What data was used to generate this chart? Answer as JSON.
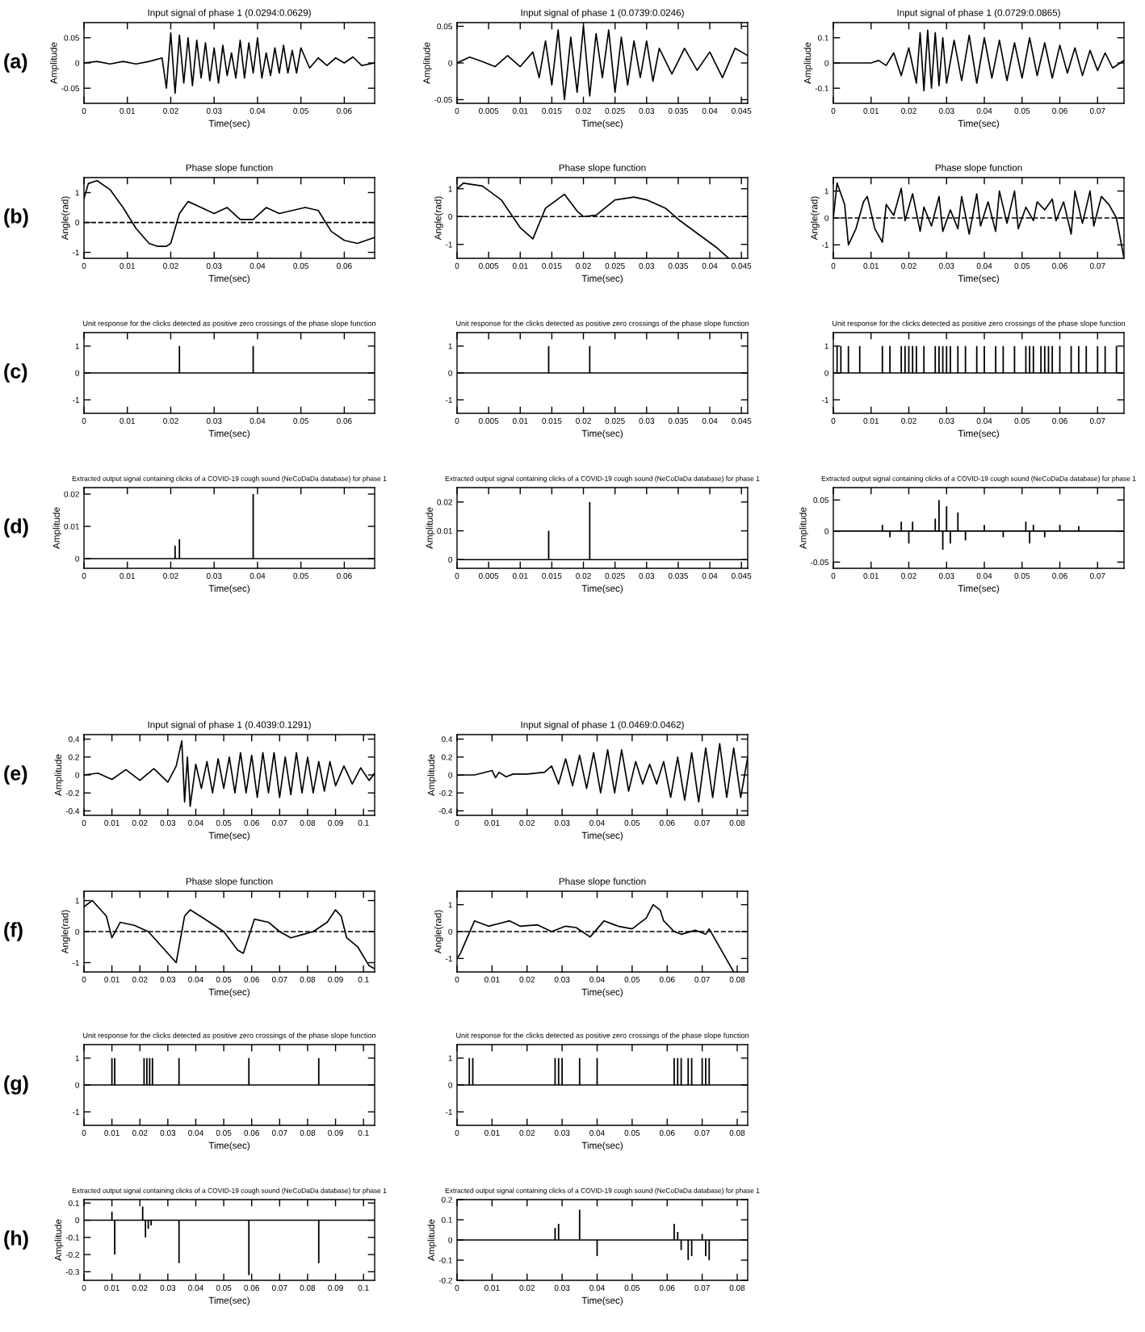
{
  "chart_data": [
    {
      "type": "line",
      "title": "Input signal of phase 1 (0.0294:0.0629)",
      "xlabel": "Time(sec)",
      "ylabel": "Amplitude",
      "annotations": [
        "(a)"
      ],
      "xlim": [
        0,
        0.067
      ],
      "xticks": [
        0,
        0.01,
        0.02,
        0.03,
        0.04,
        0.05,
        0.06
      ],
      "ylim": [
        -0.08,
        0.08
      ],
      "yticks": [
        -0.05,
        0,
        0.05
      ],
      "series": [
        {
          "color": "#000000",
          "x": [
            0,
            0.003,
            0.006,
            0.009,
            0.012,
            0.015,
            0.018,
            0.019,
            0.02,
            0.021,
            0.022,
            0.023,
            0.024,
            0.025,
            0.026,
            0.027,
            0.028,
            0.029,
            0.03,
            0.031,
            0.032,
            0.033,
            0.034,
            0.035,
            0.036,
            0.037,
            0.038,
            0.039,
            0.04,
            0.041,
            0.042,
            0.043,
            0.044,
            0.045,
            0.046,
            0.047,
            0.048,
            0.049,
            0.05,
            0.052,
            0.054,
            0.056,
            0.058,
            0.06,
            0.062,
            0.064,
            0.067
          ],
          "values": [
            0,
            0.003,
            -0.002,
            0.003,
            -0.002,
            0.003,
            0.01,
            -0.05,
            0.06,
            -0.06,
            0.055,
            -0.04,
            0.05,
            -0.045,
            0.045,
            -0.03,
            0.04,
            -0.035,
            0.03,
            -0.04,
            0.035,
            -0.025,
            0.02,
            -0.03,
            0.045,
            -0.03,
            0.04,
            -0.02,
            0.05,
            -0.03,
            0.02,
            -0.025,
            0.03,
            -0.02,
            0.035,
            -0.02,
            0.025,
            -0.02,
            0.03,
            -0.01,
            0.01,
            -0.005,
            0.01,
            0,
            0.012,
            -0.005,
            0
          ]
        }
      ]
    },
    {
      "type": "line",
      "title": "Input signal of phase 1 (0.0739:0.0246)",
      "xlabel": "Time(sec)",
      "ylabel": "Amplitude",
      "xlim": [
        0,
        0.046
      ],
      "xticks": [
        0,
        0.005,
        0.01,
        0.015,
        0.02,
        0.025,
        0.03,
        0.035,
        0.04,
        0.045
      ],
      "ylim": [
        -0.055,
        0.055
      ],
      "yticks": [
        -0.05,
        0,
        0.05
      ],
      "series": [
        {
          "color": "#000000",
          "x": [
            0,
            0.002,
            0.004,
            0.006,
            0.008,
            0.01,
            0.012,
            0.013,
            0.014,
            0.015,
            0.016,
            0.017,
            0.018,
            0.019,
            0.02,
            0.021,
            0.022,
            0.023,
            0.024,
            0.025,
            0.026,
            0.027,
            0.028,
            0.029,
            0.03,
            0.031,
            0.032,
            0.034,
            0.036,
            0.038,
            0.04,
            0.042,
            0.044,
            0.046
          ],
          "values": [
            0,
            0.008,
            0.002,
            -0.005,
            0.01,
            -0.005,
            0.015,
            -0.02,
            0.03,
            -0.03,
            0.045,
            -0.05,
            0.035,
            -0.04,
            0.05,
            -0.045,
            0.04,
            -0.02,
            0.045,
            -0.04,
            0.035,
            -0.03,
            0.03,
            -0.02,
            0.03,
            -0.025,
            0.02,
            -0.015,
            0.02,
            -0.01,
            0.015,
            -0.02,
            0.02,
            0.01
          ]
        }
      ]
    },
    {
      "type": "line",
      "title": "Input signal of phase 1 (0.0729:0.0865)",
      "xlabel": "Time(sec)",
      "ylabel": "Amplitude",
      "xlim": [
        0,
        0.077
      ],
      "xticks": [
        0,
        0.01,
        0.02,
        0.03,
        0.04,
        0.05,
        0.06,
        0.07
      ],
      "ylim": [
        -0.16,
        0.16
      ],
      "yticks": [
        -0.1,
        0,
        0.1
      ],
      "series": [
        {
          "color": "#000000",
          "x": [
            0,
            0.005,
            0.01,
            0.012,
            0.014,
            0.016,
            0.018,
            0.02,
            0.022,
            0.023,
            0.024,
            0.025,
            0.026,
            0.027,
            0.028,
            0.029,
            0.03,
            0.032,
            0.034,
            0.036,
            0.038,
            0.04,
            0.042,
            0.044,
            0.046,
            0.048,
            0.05,
            0.052,
            0.054,
            0.056,
            0.058,
            0.06,
            0.062,
            0.064,
            0.066,
            0.068,
            0.07,
            0.072,
            0.074,
            0.077
          ],
          "values": [
            0,
            0,
            0,
            0.01,
            -0.01,
            0.04,
            -0.05,
            0.06,
            -0.08,
            0.12,
            -0.11,
            0.13,
            -0.1,
            0.12,
            -0.09,
            0.1,
            -0.08,
            0.09,
            -0.07,
            0.11,
            -0.08,
            0.1,
            -0.06,
            0.09,
            -0.07,
            0.08,
            -0.06,
            0.1,
            -0.05,
            0.08,
            -0.06,
            0.07,
            -0.04,
            0.06,
            -0.05,
            0.05,
            -0.03,
            0.04,
            -0.02,
            0.01
          ]
        }
      ]
    },
    {
      "type": "line",
      "title": "Phase slope function",
      "xlabel": "Time(sec)",
      "ylabel": "Angle(rad)",
      "annotations": [
        "(b)"
      ],
      "xlim": [
        0,
        0.067
      ],
      "xticks": [
        0,
        0.01,
        0.02,
        0.03,
        0.04,
        0.05,
        0.06
      ],
      "ylim": [
        -1.2,
        1.5
      ],
      "yticks": [
        -1,
        0,
        1
      ],
      "ref_lines": [
        {
          "axis": "y",
          "value": 0,
          "color": "#000000",
          "line_style": "dashed"
        }
      ],
      "series": [
        {
          "color": "#000000",
          "x": [
            0,
            0.001,
            0.003,
            0.006,
            0.009,
            0.012,
            0.015,
            0.017,
            0.019,
            0.02,
            0.022,
            0.024,
            0.027,
            0.03,
            0.033,
            0.036,
            0.039,
            0.042,
            0.045,
            0.048,
            0.051,
            0.054,
            0.057,
            0.06,
            0.063,
            0.067
          ],
          "values": [
            0.8,
            1.3,
            1.4,
            1.1,
            0.5,
            -0.2,
            -0.7,
            -0.8,
            -0.8,
            -0.7,
            0.3,
            0.7,
            0.5,
            0.3,
            0.5,
            0.1,
            0.1,
            0.5,
            0.3,
            0.4,
            0.5,
            0.4,
            -0.3,
            -0.6,
            -0.7,
            -0.5
          ]
        }
      ]
    },
    {
      "type": "line",
      "title": "Phase slope function",
      "xlabel": "Time(sec)",
      "ylabel": "Angle(rad)",
      "xlim": [
        0,
        0.046
      ],
      "xticks": [
        0,
        0.005,
        0.01,
        0.015,
        0.02,
        0.025,
        0.03,
        0.035,
        0.04,
        0.045
      ],
      "ylim": [
        -1.5,
        1.4
      ],
      "yticks": [
        -1,
        0,
        1
      ],
      "ref_lines": [
        {
          "axis": "y",
          "value": 0,
          "color": "#000000",
          "line_style": "dashed"
        }
      ],
      "series": [
        {
          "color": "#000000",
          "x": [
            0,
            0.001,
            0.004,
            0.007,
            0.01,
            0.012,
            0.014,
            0.017,
            0.019,
            0.02,
            0.022,
            0.025,
            0.028,
            0.03,
            0.033,
            0.035,
            0.038,
            0.041,
            0.043
          ],
          "values": [
            1,
            1.2,
            1.1,
            0.6,
            -0.4,
            -0.8,
            0.3,
            0.8,
            0.2,
            0,
            0.05,
            0.6,
            0.7,
            0.6,
            0.3,
            -0.1,
            -0.6,
            -1.1,
            -1.5
          ]
        }
      ]
    },
    {
      "type": "line",
      "title": "Phase slope function",
      "xlabel": "Time(sec)",
      "ylabel": "Angle(rad)",
      "xlim": [
        0,
        0.077
      ],
      "xticks": [
        0,
        0.01,
        0.02,
        0.03,
        0.04,
        0.05,
        0.06,
        0.07
      ],
      "ylim": [
        -1.5,
        1.5
      ],
      "yticks": [
        -1,
        0,
        1
      ],
      "ref_lines": [
        {
          "axis": "y",
          "value": 0,
          "color": "#000000",
          "line_style": "dashed"
        }
      ],
      "series": [
        {
          "color": "#000000",
          "x": [
            0,
            0.001,
            0.003,
            0.004,
            0.006,
            0.008,
            0.009,
            0.011,
            0.013,
            0.014,
            0.016,
            0.018,
            0.019,
            0.021,
            0.023,
            0.024,
            0.026,
            0.028,
            0.029,
            0.031,
            0.033,
            0.034,
            0.036,
            0.038,
            0.039,
            0.041,
            0.043,
            0.044,
            0.046,
            0.048,
            0.049,
            0.051,
            0.053,
            0.054,
            0.056,
            0.058,
            0.059,
            0.061,
            0.063,
            0.064,
            0.066,
            0.068,
            0.069,
            0.071,
            0.073,
            0.075,
            0.077
          ],
          "values": [
            0,
            1.3,
            0.5,
            -1,
            -0.4,
            0.6,
            0.8,
            -0.4,
            -0.9,
            0.5,
            0.1,
            1.1,
            -0.1,
            0.9,
            -0.5,
            0.4,
            -0.3,
            0.8,
            -0.5,
            0.3,
            -0.4,
            0.8,
            -0.6,
            0.9,
            -0.3,
            0.6,
            -0.5,
            1,
            -0.2,
            1,
            -0.4,
            0.4,
            -0.1,
            0.6,
            0.3,
            0.7,
            -0.1,
            0.6,
            -0.6,
            1,
            -0.2,
            1,
            -0.3,
            0.8,
            0.5,
            0,
            -1.5
          ]
        }
      ]
    },
    {
      "type": "bar",
      "title": "Unit response for the clicks detected as positive zero crossings of the phase slope function",
      "xlabel": "Time(sec)",
      "annotations": [
        "(c)"
      ],
      "xlim": [
        0,
        0.067
      ],
      "xticks": [
        0,
        0.01,
        0.02,
        0.03,
        0.04,
        0.05,
        0.06
      ],
      "ylim": [
        -1.5,
        1.5
      ],
      "yticks": [
        -1,
        0,
        1
      ],
      "ref_lines": [
        {
          "axis": "y",
          "value": 0,
          "color": "#000000",
          "line_style": "solid"
        }
      ],
      "series": [
        {
          "color": "#000000",
          "x": [
            0.022,
            0.039
          ],
          "values": [
            1,
            1
          ]
        }
      ]
    },
    {
      "type": "bar",
      "title": "Unit response for the clicks detected as positive zero crossings of the phase slope function",
      "xlabel": "Time(sec)",
      "xlim": [
        0,
        0.046
      ],
      "xticks": [
        0,
        0.005,
        0.01,
        0.015,
        0.02,
        0.025,
        0.03,
        0.035,
        0.04,
        0.045
      ],
      "ylim": [
        -1.5,
        1.5
      ],
      "yticks": [
        -1,
        0,
        1
      ],
      "ref_lines": [
        {
          "axis": "y",
          "value": 0,
          "color": "#000000",
          "line_style": "solid"
        }
      ],
      "series": [
        {
          "color": "#000000",
          "x": [
            0.0145,
            0.021
          ],
          "values": [
            1,
            1
          ]
        }
      ]
    },
    {
      "type": "bar",
      "title": "Unit response for the clicks detected as positive zero crossings of the phase slope function",
      "xlabel": "Time(sec)",
      "xlim": [
        0,
        0.077
      ],
      "xticks": [
        0,
        0.01,
        0.02,
        0.03,
        0.04,
        0.05,
        0.06,
        0.07
      ],
      "ylim": [
        -1.5,
        1.5
      ],
      "yticks": [
        -1,
        0,
        1
      ],
      "ref_lines": [
        {
          "axis": "y",
          "value": 0,
          "color": "#000000",
          "line_style": "solid"
        }
      ],
      "series": [
        {
          "color": "#000000",
          "x": [
            0.001,
            0.002,
            0.004,
            0.007,
            0.013,
            0.015,
            0.018,
            0.019,
            0.02,
            0.021,
            0.022,
            0.024,
            0.027,
            0.028,
            0.029,
            0.03,
            0.031,
            0.033,
            0.035,
            0.038,
            0.04,
            0.043,
            0.045,
            0.048,
            0.051,
            0.052,
            0.053,
            0.055,
            0.056,
            0.057,
            0.058,
            0.06,
            0.063,
            0.065,
            0.067,
            0.07,
            0.072,
            0.075
          ],
          "values": [
            1,
            1,
            1,
            1,
            1,
            1,
            1,
            1,
            1,
            1,
            1,
            1,
            1,
            1,
            1,
            1,
            1,
            1,
            1,
            1,
            1,
            1,
            1,
            1,
            1,
            1,
            1,
            1,
            1,
            1,
            1,
            1,
            1,
            1,
            1,
            1,
            1,
            1
          ]
        }
      ]
    },
    {
      "type": "bar",
      "title": "Extracted output signal containing clicks of a COVID-19 cough sound (NeCoDaDa database) for phase 1",
      "xlabel": "Time(sec)",
      "ylabel": "Amplitude",
      "annotations": [
        "(d)"
      ],
      "xlim": [
        0,
        0.067
      ],
      "xticks": [
        0,
        0.01,
        0.02,
        0.03,
        0.04,
        0.05,
        0.06
      ],
      "ylim": [
        -0.003,
        0.022
      ],
      "yticks": [
        0,
        0.01,
        0.02
      ],
      "ref_lines": [
        {
          "axis": "y",
          "value": 0,
          "color": "#000000",
          "line_style": "solid"
        }
      ],
      "series": [
        {
          "color": "#000000",
          "x": [
            0.021,
            0.022,
            0.039
          ],
          "values": [
            0.004,
            0.006,
            0.02
          ]
        }
      ]
    },
    {
      "type": "bar",
      "title": "Extracted output signal containing clicks of a COVID-19 cough sound (NeCoDaDa database) for phase 1",
      "xlabel": "Time(sec)",
      "ylabel": "Amplitude",
      "xlim": [
        0,
        0.046
      ],
      "xticks": [
        0,
        0.005,
        0.01,
        0.015,
        0.02,
        0.025,
        0.03,
        0.035,
        0.04,
        0.045
      ],
      "ylim": [
        -0.003,
        0.025
      ],
      "yticks": [
        0,
        0.01,
        0.02
      ],
      "ref_lines": [
        {
          "axis": "y",
          "value": 0,
          "color": "#000000",
          "line_style": "solid"
        }
      ],
      "series": [
        {
          "color": "#000000",
          "x": [
            0.0145,
            0.021
          ],
          "values": [
            0.01,
            0.02
          ]
        }
      ]
    },
    {
      "type": "bar",
      "title": "Extracted output signal containing clicks of a COVID-19 cough sound (NeCoDaDa database) for phase 1",
      "xlabel": "Time(sec)",
      "ylabel": "Amplitude",
      "xlim": [
        0,
        0.077
      ],
      "xticks": [
        0,
        0.01,
        0.02,
        0.03,
        0.04,
        0.05,
        0.06,
        0.07
      ],
      "ylim": [
        -0.06,
        0.07
      ],
      "yticks": [
        -0.05,
        0,
        0.05
      ],
      "ref_lines": [
        {
          "axis": "y",
          "value": 0,
          "color": "#000000",
          "line_style": "solid"
        }
      ],
      "series": [
        {
          "color": "#000000",
          "x": [
            0.013,
            0.015,
            0.018,
            0.02,
            0.021,
            0.027,
            0.028,
            0.029,
            0.03,
            0.031,
            0.033,
            0.035,
            0.04,
            0.045,
            0.051,
            0.052,
            0.053,
            0.056,
            0.06,
            0.065
          ],
          "values": [
            0.01,
            -0.01,
            0.015,
            -0.02,
            0.015,
            0.02,
            0.05,
            -0.03,
            0.04,
            -0.02,
            0.03,
            -0.015,
            0.01,
            -0.01,
            0.015,
            -0.02,
            0.01,
            -0.01,
            0.01,
            0.008
          ]
        }
      ]
    },
    {
      "type": "line",
      "title": "Input signal of phase 1 (0.4039:0.1291)",
      "xlabel": "Time(sec)",
      "ylabel": "Amplitude",
      "annotations": [
        "(e)"
      ],
      "xlim": [
        0,
        0.104
      ],
      "xticks": [
        0,
        0.01,
        0.02,
        0.03,
        0.04,
        0.05,
        0.06,
        0.07,
        0.08,
        0.09,
        0.1
      ],
      "ylim": [
        -0.45,
        0.45
      ],
      "yticks": [
        -0.4,
        -0.2,
        0,
        0.2,
        0.4
      ],
      "series": [
        {
          "color": "#000000",
          "x": [
            0,
            0.005,
            0.01,
            0.015,
            0.02,
            0.025,
            0.03,
            0.033,
            0.035,
            0.036,
            0.037,
            0.038,
            0.04,
            0.042,
            0.044,
            0.046,
            0.048,
            0.05,
            0.052,
            0.054,
            0.056,
            0.058,
            0.06,
            0.062,
            0.064,
            0.066,
            0.068,
            0.07,
            0.072,
            0.074,
            0.076,
            0.078,
            0.08,
            0.082,
            0.084,
            0.086,
            0.088,
            0.09,
            0.093,
            0.096,
            0.099,
            0.102,
            0.104
          ],
          "values": [
            0,
            0.02,
            -0.05,
            0.06,
            -0.06,
            0.07,
            -0.08,
            0.1,
            0.38,
            -0.3,
            0.2,
            -0.35,
            0.12,
            -0.15,
            0.15,
            -0.2,
            0.18,
            -0.15,
            0.2,
            -0.2,
            0.25,
            -0.2,
            0.22,
            -0.25,
            0.25,
            -0.2,
            0.25,
            -0.25,
            0.2,
            -0.22,
            0.25,
            -0.2,
            0.2,
            -0.2,
            0.15,
            -0.18,
            0.15,
            -0.12,
            0.1,
            -0.1,
            0.08,
            -0.06,
            0.02
          ]
        }
      ]
    },
    {
      "type": "line",
      "title": "Input signal of phase 1 (0.0469:0.0462)",
      "xlabel": "Time(sec)",
      "ylabel": "Amplitude",
      "xlim": [
        0,
        0.083
      ],
      "xticks": [
        0,
        0.01,
        0.02,
        0.03,
        0.04,
        0.05,
        0.06,
        0.07,
        0.08
      ],
      "ylim": [
        -0.45,
        0.45
      ],
      "yticks": [
        -0.4,
        -0.2,
        0,
        0.2,
        0.4
      ],
      "series": [
        {
          "color": "#000000",
          "x": [
            0,
            0.005,
            0.01,
            0.011,
            0.012,
            0.014,
            0.016,
            0.02,
            0.025,
            0.027,
            0.029,
            0.031,
            0.033,
            0.035,
            0.037,
            0.039,
            0.041,
            0.043,
            0.045,
            0.047,
            0.049,
            0.051,
            0.053,
            0.055,
            0.057,
            0.059,
            0.061,
            0.063,
            0.065,
            0.067,
            0.069,
            0.071,
            0.073,
            0.075,
            0.077,
            0.079,
            0.081,
            0.083
          ],
          "values": [
            0,
            0,
            0.05,
            -0.03,
            0.03,
            -0.02,
            0.01,
            0.01,
            0.03,
            0.1,
            -0.1,
            0.18,
            -0.12,
            0.22,
            -0.15,
            0.25,
            -0.2,
            0.28,
            -0.2,
            0.28,
            -0.18,
            0.15,
            -0.1,
            0.12,
            -0.1,
            0.15,
            -0.25,
            0.2,
            -0.28,
            0.25,
            -0.3,
            0.3,
            -0.25,
            0.35,
            -0.25,
            0.3,
            -0.25,
            0.2
          ]
        }
      ]
    },
    {
      "type": "line",
      "title": "Phase slope function",
      "xlabel": "Time(sec)",
      "ylabel": "Angle(rad)",
      "annotations": [
        "(f)"
      ],
      "xlim": [
        0,
        0.104
      ],
      "xticks": [
        0,
        0.01,
        0.02,
        0.03,
        0.04,
        0.05,
        0.06,
        0.07,
        0.08,
        0.09,
        0.1
      ],
      "ylim": [
        -1.3,
        1.3
      ],
      "yticks": [
        -1,
        0,
        1
      ],
      "ref_lines": [
        {
          "axis": "y",
          "value": 0,
          "color": "#000000",
          "line_style": "dashed"
        }
      ],
      "series": [
        {
          "color": "#000000",
          "x": [
            0,
            0.003,
            0.008,
            0.01,
            0.013,
            0.018,
            0.023,
            0.028,
            0.033,
            0.036,
            0.038,
            0.045,
            0.05,
            0.055,
            0.057,
            0.061,
            0.066,
            0.07,
            0.074,
            0.078,
            0.082,
            0.087,
            0.09,
            0.092,
            0.094,
            0.098,
            0.102,
            0.104
          ],
          "values": [
            0.8,
            1.0,
            0.5,
            -0.2,
            0.3,
            0.2,
            0,
            -0.5,
            -1,
            0.5,
            0.7,
            0.3,
            0,
            -0.6,
            -0.7,
            0.4,
            0.3,
            0,
            -0.2,
            -0.1,
            0,
            0.3,
            0.7,
            0.5,
            -0.2,
            -0.5,
            -1.1,
            -1.2
          ]
        }
      ]
    },
    {
      "type": "line",
      "title": "Phase slope function",
      "xlabel": "Time(sec)",
      "ylabel": "Angle(rad)",
      "xlim": [
        0,
        0.083
      ],
      "xticks": [
        0,
        0.01,
        0.02,
        0.03,
        0.04,
        0.05,
        0.06,
        0.07,
        0.08
      ],
      "ylim": [
        -1.5,
        1.5
      ],
      "yticks": [
        -1,
        0,
        1
      ],
      "ref_lines": [
        {
          "axis": "y",
          "value": 0,
          "color": "#000000",
          "line_style": "dashed"
        }
      ],
      "series": [
        {
          "color": "#000000",
          "x": [
            0,
            0.001,
            0.005,
            0.009,
            0.012,
            0.015,
            0.018,
            0.023,
            0.027,
            0.031,
            0.034,
            0.038,
            0.042,
            0.046,
            0.05,
            0.054,
            0.056,
            0.058,
            0.059,
            0.062,
            0.064,
            0.068,
            0.071,
            0.072,
            0.079
          ],
          "values": [
            -1,
            -0.8,
            0.4,
            0.2,
            0.3,
            0.4,
            0.2,
            0.25,
            0,
            0.2,
            0.15,
            -0.2,
            0.4,
            0.2,
            0.1,
            0.5,
            1.0,
            0.8,
            0.4,
            0,
            -0.1,
            0.05,
            -0.1,
            0.1,
            -1.5
          ]
        }
      ]
    },
    {
      "type": "bar",
      "title": "Unit response for the clicks detected as positive zero crossings of the phase slope function",
      "xlabel": "Time(sec)",
      "annotations": [
        "(g)"
      ],
      "xlim": [
        0,
        0.104
      ],
      "xticks": [
        0,
        0.01,
        0.02,
        0.03,
        0.04,
        0.05,
        0.06,
        0.07,
        0.08,
        0.09,
        0.1
      ],
      "ylim": [
        -1.5,
        1.5
      ],
      "yticks": [
        -1,
        0,
        1
      ],
      "ref_lines": [
        {
          "axis": "y",
          "value": 0,
          "color": "#000000",
          "line_style": "solid"
        }
      ],
      "series": [
        {
          "color": "#000000",
          "x": [
            0.01,
            0.011,
            0.0215,
            0.0225,
            0.0235,
            0.0245,
            0.034,
            0.059,
            0.084
          ],
          "values": [
            1,
            1,
            1,
            1,
            1,
            1,
            1,
            1,
            1
          ]
        }
      ]
    },
    {
      "type": "bar",
      "title": "Unit response for the clicks detected as positive zero crossings of the phase slope function",
      "xlabel": "Time(sec)",
      "xlim": [
        0,
        0.083
      ],
      "xticks": [
        0,
        0.01,
        0.02,
        0.03,
        0.04,
        0.05,
        0.06,
        0.07,
        0.08
      ],
      "ylim": [
        -1.5,
        1.5
      ],
      "yticks": [
        -1,
        0,
        1
      ],
      "ref_lines": [
        {
          "axis": "y",
          "value": 0,
          "color": "#000000",
          "line_style": "solid"
        }
      ],
      "series": [
        {
          "color": "#000000",
          "x": [
            0.0035,
            0.0045,
            0.028,
            0.029,
            0.03,
            0.035,
            0.04,
            0.062,
            0.063,
            0.064,
            0.066,
            0.067,
            0.07,
            0.071,
            0.072
          ],
          "values": [
            1,
            1,
            1,
            1,
            1,
            1,
            1,
            1,
            1,
            1,
            1,
            1,
            1,
            1,
            1
          ]
        }
      ]
    },
    {
      "type": "bar",
      "title": "Extracted output signal containing clicks of a COVID-19 cough sound (NeCoDaDa database) for phase 1",
      "xlabel": "Time(sec)",
      "ylabel": "Amplitude",
      "annotations": [
        "(h)"
      ],
      "xlim": [
        0,
        0.104
      ],
      "xticks": [
        0,
        0.01,
        0.02,
        0.03,
        0.04,
        0.05,
        0.06,
        0.07,
        0.08,
        0.09,
        0.1
      ],
      "ylim": [
        -0.35,
        0.12
      ],
      "yticks": [
        -0.3,
        -0.2,
        -0.1,
        0,
        0.1
      ],
      "ref_lines": [
        {
          "axis": "y",
          "value": 0,
          "color": "#000000",
          "line_style": "solid"
        }
      ],
      "series": [
        {
          "color": "#000000",
          "x": [
            0.01,
            0.011,
            0.021,
            0.022,
            0.023,
            0.024,
            0.034,
            0.059,
            0.084
          ],
          "values": [
            0.05,
            -0.2,
            0.08,
            -0.1,
            -0.05,
            -0.03,
            -0.25,
            -0.32,
            -0.25
          ]
        }
      ]
    },
    {
      "type": "bar",
      "title": "Extracted output signal containing clicks of a COVID-19 cough sound (NeCoDaDa database) for phase 1",
      "xlabel": "Time(sec)",
      "ylabel": "Amplitude",
      "xlim": [
        0,
        0.083
      ],
      "xticks": [
        0,
        0.01,
        0.02,
        0.03,
        0.04,
        0.05,
        0.06,
        0.07,
        0.08
      ],
      "ylim": [
        -0.2,
        0.2
      ],
      "yticks": [
        -0.2,
        -0.1,
        0,
        0.1,
        0.2
      ],
      "ref_lines": [
        {
          "axis": "y",
          "value": 0,
          "color": "#000000",
          "line_style": "solid"
        }
      ],
      "series": [
        {
          "color": "#000000",
          "x": [
            0.028,
            0.029,
            0.035,
            0.04,
            0.062,
            0.063,
            0.064,
            0.066,
            0.067,
            0.07,
            0.071,
            0.072
          ],
          "values": [
            0.06,
            0.08,
            0.15,
            -0.08,
            0.08,
            0.04,
            -0.05,
            -0.1,
            -0.08,
            0.03,
            -0.08,
            -0.1
          ]
        }
      ]
    }
  ]
}
